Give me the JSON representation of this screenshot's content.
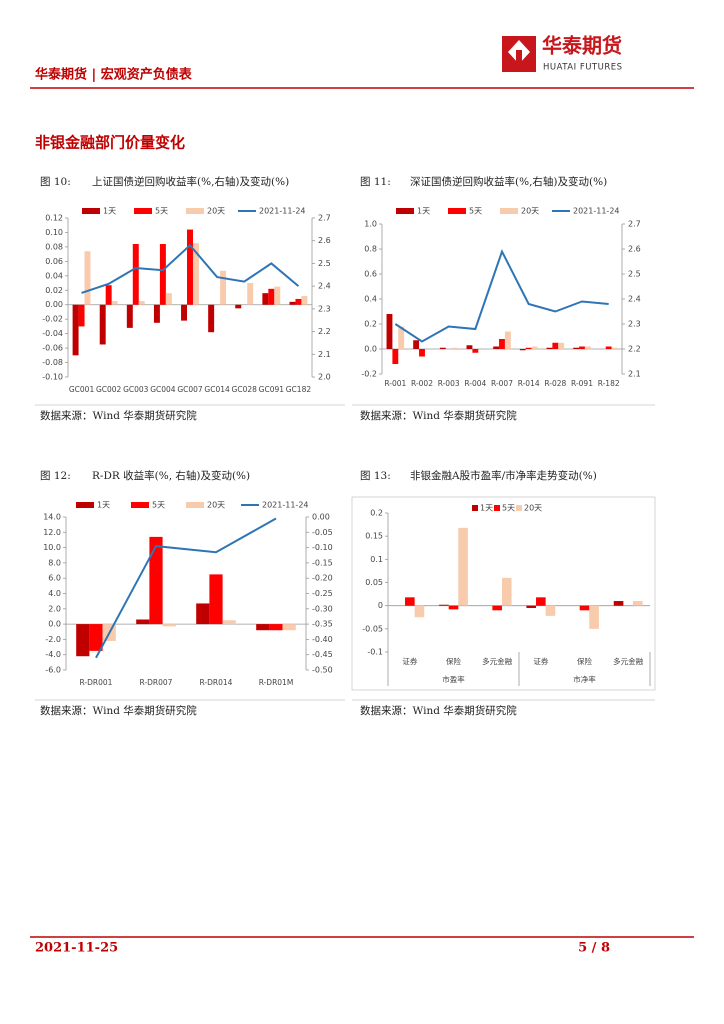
{
  "header": {
    "title": "华泰期货 | 宏观资产负债表",
    "logo_name": "华泰期货",
    "logo_en": "HUATAI FUTURES"
  },
  "section_title": "非银金融部门价量变化",
  "chart_data": [
    {
      "type": "combo",
      "figure": "图 10:",
      "title": "上证国债逆回购收益率(%,右轴)及变动(%)",
      "source": "数据来源：Wind 华泰期货研究院",
      "categories": [
        "GC001",
        "GC002",
        "GC003",
        "GC004",
        "GC007",
        "GC014",
        "GC028",
        "GC091",
        "GC182"
      ],
      "series": [
        {
          "name": "1天",
          "color": "#c00000",
          "values": [
            -0.07,
            -0.055,
            -0.032,
            -0.025,
            -0.022,
            -0.038,
            -0.005,
            0.016,
            0.004
          ]
        },
        {
          "name": "5天",
          "color": "#ff0000",
          "values": [
            -0.03,
            0.027,
            0.084,
            0.084,
            0.104,
            0.0,
            0.0,
            0.022,
            0.008
          ]
        },
        {
          "name": "20天",
          "color": "#f8cbad",
          "values": [
            0.074,
            0.005,
            0.005,
            0.016,
            0.085,
            0.047,
            0.03,
            0.025,
            0.012
          ]
        },
        {
          "name": "2021-11-24",
          "color": "#2e75b6",
          "type": "line",
          "axis": "y2",
          "values": [
            2.37,
            2.41,
            2.48,
            2.47,
            2.58,
            2.44,
            2.42,
            2.5,
            2.4
          ]
        }
      ],
      "ylim": [
        -0.1,
        0.12
      ],
      "yticks": [
        {
          "value": -0.1,
          "label": "-0.10"
        },
        -0.08,
        -0.06,
        -0.04,
        -0.02,
        {
          "value": 0,
          "label": "0.00"
        },
        0.02,
        0.04,
        0.06,
        0.08,
        {
          "value": 0.1,
          "label": "0.10"
        },
        0.12
      ],
      "y2lim": [
        2.0,
        2.7
      ],
      "y2ticks": [
        {
          "value": 2.0,
          "label": "2.0"
        },
        2.1,
        2.2,
        2.3,
        2.4,
        2.5,
        2.6,
        2.7
      ]
    },
    {
      "type": "combo",
      "figure": "图 11:",
      "title": "深证国债逆回购收益率(%,右轴)及变动(%)",
      "source": "数据来源：Wind 华泰期货研究院",
      "categories": [
        "R-001",
        "R-002",
        "R-003",
        "R-004",
        "R-007",
        "R-014",
        "R-028",
        "R-091",
        "R-182"
      ],
      "series": [
        {
          "name": "1天",
          "color": "#c00000",
          "values": [
            0.28,
            0.07,
            0.01,
            0.03,
            0.02,
            -0.01,
            0.01,
            0.01,
            0.0
          ]
        },
        {
          "name": "5天",
          "color": "#ff0000",
          "values": [
            -0.12,
            -0.06,
            0.0,
            -0.03,
            0.08,
            0.01,
            0.05,
            0.02,
            0.02
          ]
        },
        {
          "name": "20天",
          "color": "#f8cbad",
          "values": [
            0.18,
            0.0,
            0.01,
            0.0,
            0.14,
            0.02,
            0.05,
            0.02,
            0.01
          ]
        },
        {
          "name": "2021-11-24",
          "color": "#2e75b6",
          "type": "line",
          "axis": "y2",
          "values": [
            2.3,
            2.23,
            2.29,
            2.28,
            2.59,
            2.38,
            2.35,
            2.39,
            2.38
          ]
        }
      ],
      "ylim": [
        -0.2,
        1.0
      ],
      "yticks": [
        -0.2,
        {
          "value": 0,
          "label": "0.0"
        },
        0.2,
        0.4,
        0.6,
        0.8,
        {
          "value": 1.0,
          "label": "1.0"
        }
      ],
      "y2lim": [
        2.1,
        2.7
      ],
      "y2ticks": [
        2.1,
        2.2,
        2.3,
        2.4,
        2.5,
        2.6,
        2.7
      ]
    },
    {
      "type": "combo",
      "figure": "图 12:",
      "title": "R-DR 收益率(%, 右轴)及变动(%)",
      "source": "数据来源：Wind 华泰期货研究院",
      "categories": [
        "R-DR001",
        "R-DR007",
        "R-DR014",
        "R-DR01M"
      ],
      "series": [
        {
          "name": "1天",
          "color": "#c00000",
          "values": [
            -4.2,
            0.6,
            2.7,
            -0.8
          ]
        },
        {
          "name": "5天",
          "color": "#ff0000",
          "values": [
            -3.5,
            11.4,
            6.5,
            -0.8
          ]
        },
        {
          "name": "20天",
          "color": "#f8cbad",
          "values": [
            -2.2,
            -0.3,
            0.5,
            -0.8
          ]
        },
        {
          "name": "2021-11-24",
          "color": "#2e75b6",
          "type": "line",
          "axis": "y2",
          "values": [
            -0.46,
            -0.095,
            -0.115,
            -0.005
          ]
        }
      ],
      "ylim": [
        -6,
        14
      ],
      "yticks": [
        {
          "value": -6,
          "label": "-6.0"
        },
        {
          "value": -4,
          "label": "-4.0"
        },
        {
          "value": -2,
          "label": "-2.0"
        },
        {
          "value": 0,
          "label": "0.0"
        },
        {
          "value": 2,
          "label": "2.0"
        },
        {
          "value": 4,
          "label": "4.0"
        },
        {
          "value": 6,
          "label": "6.0"
        },
        {
          "value": 8,
          "label": "8.0"
        },
        {
          "value": 10,
          "label": "10.0"
        },
        {
          "value": 12,
          "label": "12.0"
        },
        {
          "value": 14,
          "label": "14.0"
        }
      ],
      "y2lim": [
        -0.5,
        0
      ],
      "y2ticks": [
        {
          "value": -0.5,
          "label": "-0.50"
        },
        {
          "value": -0.45,
          "label": "-0.45"
        },
        {
          "value": -0.4,
          "label": "-0.40"
        },
        {
          "value": -0.35,
          "label": "-0.35"
        },
        {
          "value": -0.3,
          "label": "-0.30"
        },
        {
          "value": -0.25,
          "label": "-0.25"
        },
        {
          "value": -0.2,
          "label": "-0.20"
        },
        {
          "value": -0.15,
          "label": "-0.15"
        },
        {
          "value": -0.1,
          "label": "-0.10"
        },
        -0.05,
        {
          "value": 0,
          "label": "0.00"
        }
      ]
    },
    {
      "type": "bar",
      "figure": "图 13:",
      "title": "非银金融A股市盈率/市净率走势变动(%)",
      "source": "数据来源：Wind 华泰期货研究院",
      "groups": [
        {
          "name": "市盈率",
          "categories": [
            "证券",
            "保险",
            "多元金融"
          ]
        },
        {
          "name": "市净率",
          "categories": [
            "证券",
            "保险",
            "多元金融"
          ]
        }
      ],
      "series": [
        {
          "name": "1天",
          "color": "#c00000",
          "values": [
            0.0,
            0.002,
            0.0,
            -0.005,
            0.0,
            0.01
          ]
        },
        {
          "name": "5天",
          "color": "#ff0000",
          "values": [
            0.018,
            -0.008,
            -0.01,
            0.018,
            -0.01,
            0.0
          ]
        },
        {
          "name": "20天",
          "color": "#f8cbad",
          "values": [
            -0.025,
            0.168,
            0.06,
            -0.022,
            -0.05,
            0.01
          ]
        }
      ],
      "ylim": [
        -0.1,
        0.2
      ],
      "yticks": [
        -0.1,
        -0.05,
        0,
        0.05,
        0.1,
        0.15,
        0.2
      ]
    }
  ],
  "footer": {
    "date": "2021-11-25",
    "page": "5 / 8"
  }
}
